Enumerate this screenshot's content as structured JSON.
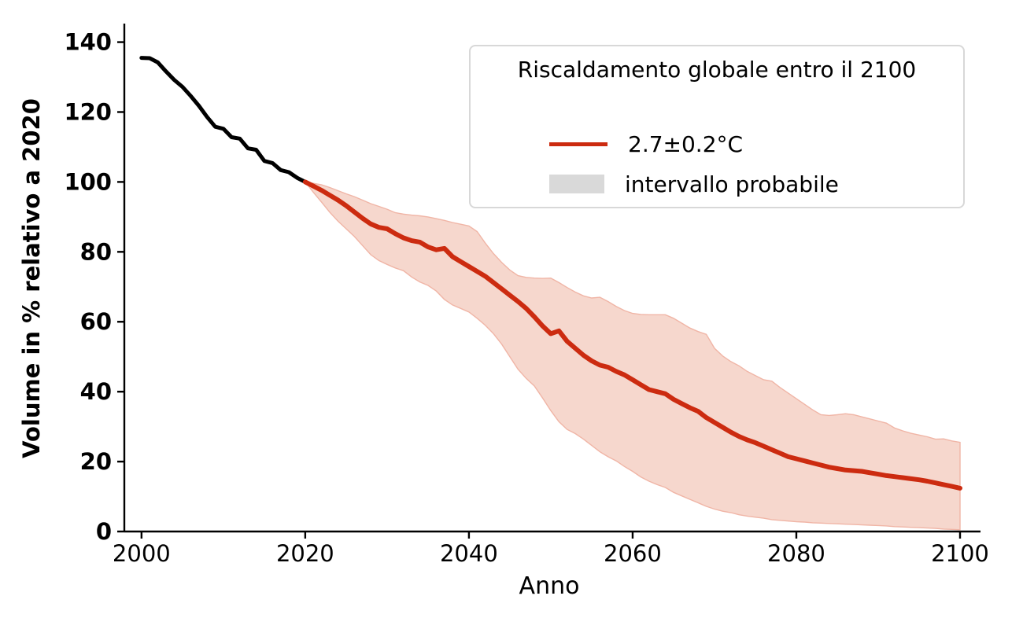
{
  "chart_data": {
    "type": "line",
    "title": "",
    "xlabel": "Anno",
    "ylabel": "Volume in % relativo a 2020",
    "x_ticks": [
      2000,
      2020,
      2040,
      2060,
      2080,
      2100
    ],
    "y_ticks": [
      0,
      20,
      40,
      60,
      80,
      100,
      120,
      140
    ],
    "xlim": [
      1997.9,
      2102.5
    ],
    "ylim": [
      0,
      145.3
    ],
    "grid": false,
    "legend": {
      "position": "upper right",
      "title": "Riscaldamento globale entro il 2100",
      "items": [
        {
          "label": "2.7±0.2°C",
          "swatch": "line",
          "color": "#cc2b10"
        },
        {
          "label": "intervallo probabile",
          "swatch": "patch",
          "color": "#d9d9d9"
        }
      ]
    },
    "colors": {
      "historical": "#000000",
      "projection": "#cc2b10",
      "band_fill": "#f6d7cd",
      "band_edge": "#f0b5a6"
    },
    "series": [
      {
        "name": "volume-storico",
        "type": "line",
        "color_key": "historical",
        "x_start": 2000,
        "x_step": 1,
        "values": [
          135.5,
          135.4,
          134.2,
          131.6,
          129.2,
          127.2,
          124.6,
          121.8,
          118.6,
          115.8,
          115.2,
          112.8,
          112.4,
          109.6,
          109.2,
          106.0,
          105.4,
          103.4,
          102.8,
          101.2,
          100.0
        ]
      },
      {
        "name": "proiezione-2.7C",
        "type": "line",
        "color_key": "projection",
        "x_start": 2020,
        "x_step": 1,
        "values": [
          100.0,
          98.8,
          97.6,
          96.2,
          94.8,
          93.2,
          91.4,
          89.6,
          88.0,
          87.0,
          86.6,
          85.2,
          84.0,
          83.2,
          82.8,
          81.4,
          80.6,
          81.0,
          78.6,
          77.2,
          75.8,
          74.4,
          73.0,
          71.2,
          69.4,
          67.6,
          65.8,
          63.8,
          61.4,
          58.8,
          56.6,
          57.4,
          54.4,
          52.4,
          50.4,
          48.8,
          47.6,
          47.0,
          45.8,
          44.8,
          43.4,
          42.0,
          40.6,
          40.0,
          39.4,
          37.8,
          36.6,
          35.4,
          34.4,
          32.6,
          31.2,
          29.8,
          28.4,
          27.2,
          26.2,
          25.4,
          24.4,
          23.4,
          22.4,
          21.4,
          20.8,
          20.2,
          19.6,
          19.0,
          18.4,
          18.0,
          17.6,
          17.4,
          17.2,
          16.8,
          16.4,
          16.0,
          15.7,
          15.4,
          15.1,
          14.8,
          14.4,
          13.9,
          13.4,
          12.9,
          12.4
        ]
      },
      {
        "name": "intervallo-probabile",
        "type": "band",
        "color_key": "band_fill",
        "x_start": 2020,
        "x_step": 1,
        "upper": [
          100.0,
          99.6,
          99.2,
          98.4,
          97.5,
          96.6,
          95.8,
          94.8,
          93.8,
          93.0,
          92.2,
          91.2,
          90.8,
          90.5,
          90.3,
          90.0,
          89.5,
          89.0,
          88.4,
          87.9,
          87.4,
          85.8,
          82.5,
          79.5,
          77.0,
          74.8,
          73.2,
          72.7,
          72.5,
          72.4,
          72.5,
          71.2,
          69.8,
          68.5,
          67.4,
          66.8,
          67.0,
          65.8,
          64.4,
          63.2,
          62.4,
          62.1,
          62.0,
          62.0,
          62.0,
          61.0,
          59.6,
          58.2,
          57.2,
          56.4,
          52.4,
          50.2,
          48.6,
          47.4,
          45.8,
          44.6,
          43.4,
          43.0,
          41.2,
          39.6,
          38.0,
          36.4,
          34.8,
          33.4,
          33.2,
          33.4,
          33.7,
          33.4,
          32.8,
          32.2,
          31.6,
          31.0,
          29.6,
          28.8,
          28.1,
          27.6,
          27.1,
          26.4,
          26.5,
          25.9,
          25.5
        ],
        "lower": [
          100.0,
          97.0,
          94.2,
          91.3,
          88.8,
          86.6,
          84.4,
          81.8,
          79.2,
          77.5,
          76.4,
          75.4,
          74.6,
          72.8,
          71.4,
          70.4,
          68.8,
          66.4,
          64.8,
          63.8,
          62.8,
          61.0,
          59.0,
          56.6,
          53.6,
          50.0,
          46.4,
          43.8,
          41.6,
          38.2,
          34.6,
          31.4,
          29.2,
          28.0,
          26.4,
          24.6,
          22.8,
          21.4,
          20.2,
          18.6,
          17.2,
          15.6,
          14.4,
          13.4,
          12.6,
          11.2,
          10.2,
          9.2,
          8.2,
          7.2,
          6.4,
          5.8,
          5.4,
          4.8,
          4.4,
          4.1,
          3.8,
          3.4,
          3.2,
          3.0,
          2.8,
          2.7,
          2.5,
          2.4,
          2.3,
          2.2,
          2.1,
          2.0,
          1.9,
          1.8,
          1.7,
          1.6,
          1.4,
          1.3,
          1.2,
          1.1,
          1.0,
          0.9,
          0.7,
          0.6,
          0.5
        ]
      }
    ]
  }
}
